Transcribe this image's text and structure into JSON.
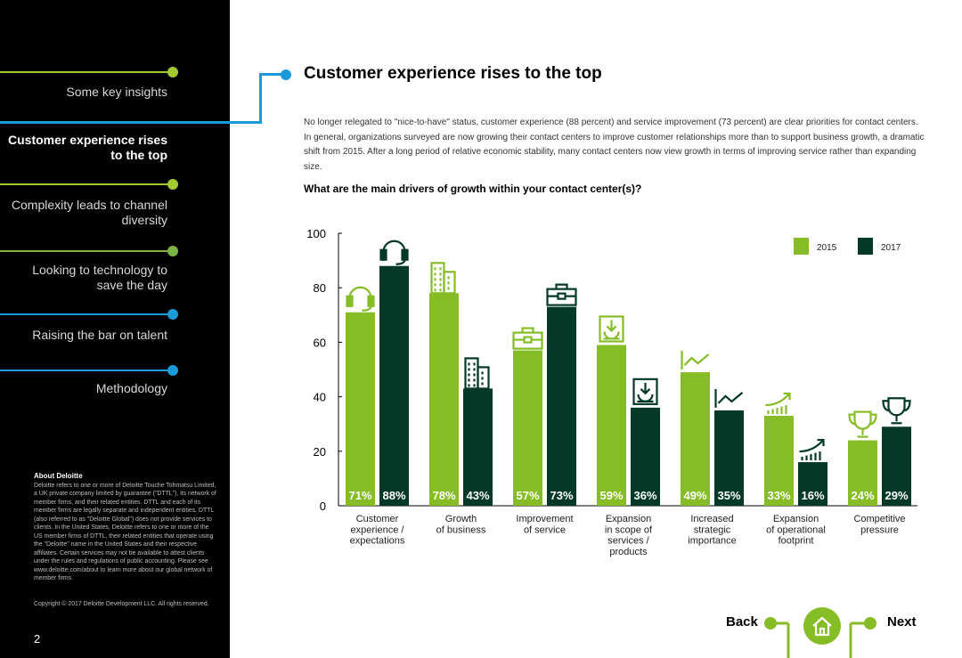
{
  "colors": {
    "green": "#86bc25",
    "dark_green": "#043927",
    "blue": "#1a9ad9",
    "black": "#000000"
  },
  "sidebar": {
    "items": [
      {
        "label": "Some key insights",
        "color": "#a5c930",
        "active": false
      },
      {
        "label": "Customer experience rises to the top",
        "color": "#1a9ad9",
        "active": true
      },
      {
        "label": "Complexity leads to channel diversity",
        "color": "#a5c930",
        "active": false
      },
      {
        "label": "Looking to technology to save the day",
        "color": "#7cb342",
        "active": false
      },
      {
        "label": "Raising the bar on talent",
        "color": "#1a9ad9",
        "active": false
      },
      {
        "label": "Methodology",
        "color": "#1a9ad9",
        "active": false
      }
    ],
    "about_title": "About Deloitte",
    "about_text": "Deloitte refers to one or more of Deloitte Touche Tohmatsu Limited, a UK private company limited by guarantee (\"DTTL\"), its network of member firms, and their related entities. DTTL and each of its member firms are legally separate and independent entities. DTTL (also referred to as \"Deloitte Global\") does not provide services to clients. In the United States, Deloitte refers to one or more of the US member firms of DTTL, their related entities that operate using the \"Deloitte\" name in the United States and their respective affiliates. Certain services may not be available to attest clients under the rules and regulations of public accounting. Please see www.deloitte.com/about to learn more about our global network of member firms.",
    "copyright": "Copyright © 2017 Deloitte Development LLC. All rights reserved.",
    "page_number": "2"
  },
  "main": {
    "title": "Customer experience rises to the top",
    "intro": "No longer relegated to \"nice-to-have\" status, customer experience (88 percent) and service improvement (73 percent) are clear priorities for contact centers. In general, organizations surveyed are now growing their contact centers to improve customer relationships more than to support business growth, a dramatic shift from 2015. After a long period of relative economic stability, many contact centers now view growth in terms of improving service rather than expanding size.",
    "question": "What are the main drivers of growth within your contact center(s)?"
  },
  "chart_data": {
    "type": "bar",
    "title": "What are the main drivers of growth within your contact center(s)?",
    "categories": [
      "Customer experience / expectations",
      "Growth of business",
      "Improvement of service",
      "Expansion in scope of services / products",
      "Increased strategic importance",
      "Expansion of operational footprint",
      "Competitive pressure"
    ],
    "category_lines": [
      [
        "Customer",
        "experience /",
        "expectations"
      ],
      [
        "Growth",
        "of business"
      ],
      [
        "Improvement",
        "of service"
      ],
      [
        "Expansion",
        "in scope of",
        "services /",
        "products"
      ],
      [
        "Increased",
        "strategic",
        "importance"
      ],
      [
        "Expansion",
        "of operational",
        "footprint"
      ],
      [
        "Competitive",
        "pressure"
      ]
    ],
    "series": [
      {
        "name": "2015",
        "values": [
          71,
          78,
          57,
          59,
          49,
          33,
          24
        ],
        "color": "#86bc25"
      },
      {
        "name": "2017",
        "values": [
          88,
          43,
          73,
          36,
          35,
          16,
          29
        ],
        "color": "#043927"
      }
    ],
    "bar_labels": [
      [
        "71%",
        "78%",
        "57%",
        "59%",
        "49%",
        "33%",
        "24%"
      ],
      [
        "88%",
        "43%",
        "73%",
        "36%",
        "35%",
        "16%",
        "29%"
      ]
    ],
    "ylim": [
      0,
      100
    ],
    "yticks": [
      0,
      20,
      40,
      60,
      80,
      100
    ],
    "icons": [
      "headset-icon",
      "building-icon",
      "briefcase-icon",
      "document-download-icon",
      "trend-chart-icon",
      "growth-bars-icon",
      "trophy-icon"
    ],
    "legend": [
      "2015",
      "2017"
    ],
    "legend_position": "top-right",
    "grid": false
  },
  "footer_nav": {
    "back_label": "Back",
    "next_label": "Next"
  }
}
